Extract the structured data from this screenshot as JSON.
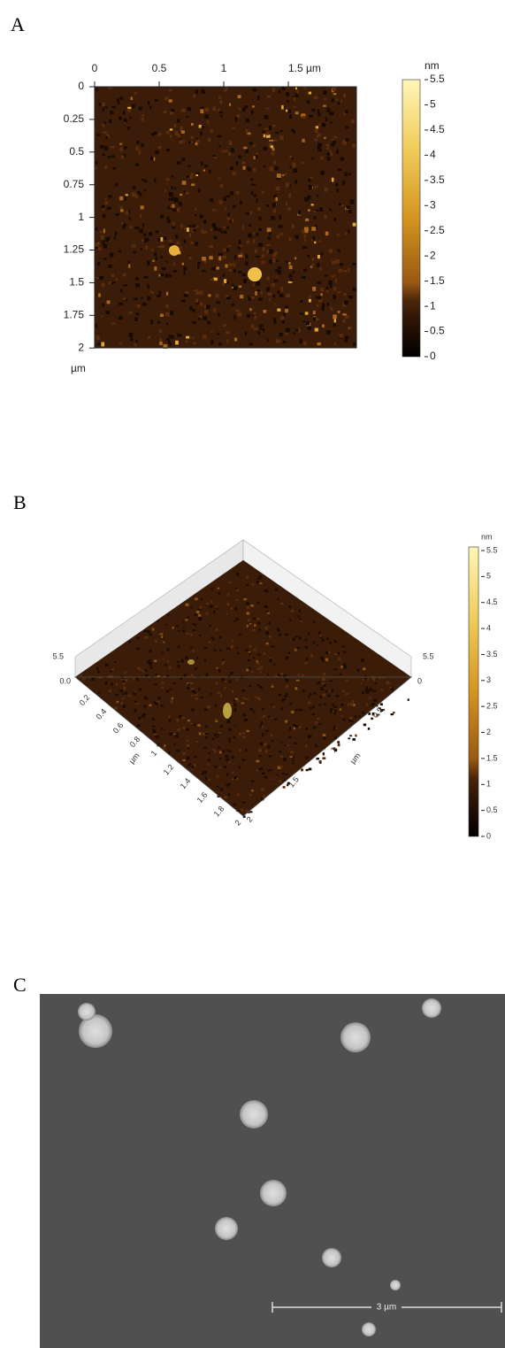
{
  "panels": [
    {
      "label": "A",
      "x_ticks": [
        "0",
        "0.5",
        "1",
        "1.5 µm"
      ],
      "y_ticks": [
        "0",
        "0.25",
        "0.5",
        "0.75",
        "1",
        "1.25",
        "1.5",
        "1.75",
        "2"
      ],
      "y_unit": "µm",
      "colorbar": {
        "unit": "nm",
        "ticks": [
          "5.5",
          "5",
          "4.5",
          "4",
          "3.5",
          "3",
          "2.5",
          "2",
          "1.5",
          "1",
          "0.5",
          "0"
        ]
      }
    },
    {
      "label": "B",
      "z_left": [
        "5.5",
        "0.0"
      ],
      "z_right": [
        "5.5",
        "0"
      ],
      "left_axis_ticks": [
        "0.2",
        "0.4",
        "0.6",
        "0.8",
        "1",
        "1.2",
        "1.4",
        "1.6",
        "1.8",
        "2"
      ],
      "left_axis_unit": "µm",
      "right_axis_ticks": [
        "0.5",
        "1",
        "1.5",
        "2"
      ],
      "right_axis_unit": "µm",
      "colorbar": {
        "unit": "nm",
        "ticks": [
          "5.5",
          "5",
          "4.5",
          "4",
          "3.5",
          "3",
          "2.5",
          "2",
          "1.5",
          "1",
          "0.5",
          "0"
        ]
      }
    },
    {
      "label": "C",
      "scale_bar": "3 µm"
    }
  ]
}
